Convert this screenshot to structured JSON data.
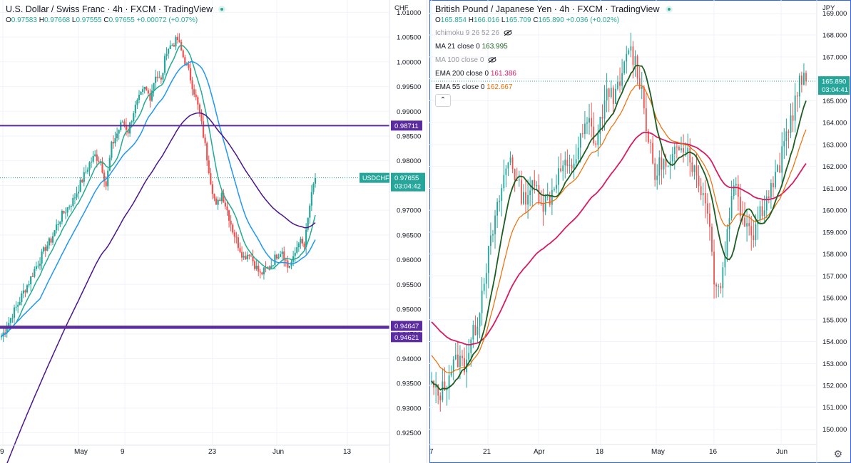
{
  "left": {
    "title": "U.S. Dollar / Swiss Franc · 4h · FXCM · TradingView",
    "ohlc": {
      "o": "0.97583",
      "h": "0.97668",
      "l": "0.97555",
      "c": "0.97655",
      "chg": "+0.00072 (+0.07%)"
    },
    "currency": "CHF",
    "symbol_label": "USDCHF",
    "price_label": "0.97655",
    "countdown": "03:04:42",
    "level_labels": [
      "0.98711",
      "0.94647",
      "0.94621"
    ],
    "colors": {
      "up": "#26a69a",
      "down": "#ef5350",
      "level": "#5b2c9f",
      "ma_teal": "#22ab94",
      "ma_blue": "#2196f3",
      "ma_purple": "#4a148c"
    }
  },
  "right": {
    "title": "British Pound / Japanese Yen · 4h · FXCM · TradingView",
    "ohlc": {
      "o": "165.854",
      "h": "166.016",
      "l": "165.709",
      "c": "165.890",
      "chg": "+0.036 (+0.02%)"
    },
    "currency": "JPY",
    "indicators": [
      {
        "label": "Ichimoku 9 26 52 26",
        "value": "",
        "hidden": true
      },
      {
        "label": "MA 21 close 0",
        "value": "163.995",
        "color": "#1b5e20",
        "hidden": false
      },
      {
        "label": "MA 100 close 0",
        "value": "",
        "hidden": true
      },
      {
        "label": "EMA 200 close 0",
        "value": "161.386",
        "color": "#d81b60",
        "hidden": false
      },
      {
        "label": "EMA 55 close 0",
        "value": "162.667",
        "color": "#ef6c00",
        "hidden": false
      }
    ],
    "price_label": "165.890",
    "countdown": "03:04:41",
    "colors": {
      "up": "#26a69a",
      "down": "#ef5350",
      "ma21": "#1b5e20",
      "ema200": "#d81b60",
      "ema55": "#ef6c00"
    }
  },
  "chart_data": [
    {
      "type": "line",
      "title": "U.S. Dollar / Swiss Franc · 4h · FXCM · TradingView",
      "x_ticks": [
        "9",
        "May",
        "9",
        "23",
        "Jun",
        "13"
      ],
      "y_ticks": [
        "1.01000",
        "1.00500",
        "1.00000",
        "0.99500",
        "0.99000",
        "0.98500",
        "0.98000",
        "0.97500",
        "0.97000",
        "0.96500",
        "0.96000",
        "0.95500",
        "0.95000",
        "0.94500",
        "0.94000",
        "0.93500",
        "0.93000",
        "0.92500"
      ],
      "ylim": [
        0.9225,
        1.0125
      ],
      "close_series": [
        0.9445,
        0.9465,
        0.949,
        0.951,
        0.9535,
        0.9555,
        0.958,
        0.96,
        0.9625,
        0.964,
        0.9668,
        0.969,
        0.9705,
        0.972,
        0.9745,
        0.977,
        0.9795,
        0.981,
        0.98,
        0.975,
        0.983,
        0.9855,
        0.988,
        0.986,
        0.99,
        0.9925,
        0.9945,
        0.993,
        0.9975,
        0.996,
        1.0025,
        1.0035,
        1.0045,
        1.001,
        0.998,
        0.994,
        0.9895,
        0.983,
        0.976,
        0.9705,
        0.9735,
        0.97,
        0.966,
        0.963,
        0.9605,
        0.9615,
        0.959,
        0.957,
        0.958,
        0.959,
        0.961,
        0.962,
        0.9585,
        0.96,
        0.964,
        0.9625,
        0.971,
        0.9765
      ],
      "horizontal_levels": [
        0.98711,
        0.94647,
        0.94621
      ],
      "last_price": 0.97655,
      "grid": true
    },
    {
      "type": "line",
      "title": "British Pound / Japanese Yen · 4h · FXCM · TradingView",
      "x_ticks": [
        "7",
        "21",
        "Apr",
        "18",
        "May",
        "16",
        "Jun"
      ],
      "y_ticks": [
        "169.000",
        "168.000",
        "167.000",
        "166.000",
        "165.000",
        "164.000",
        "163.000",
        "162.000",
        "161.000",
        "160.000",
        "159.000",
        "158.000",
        "157.000",
        "156.000",
        "155.000",
        "154.000",
        "153.000",
        "152.000",
        "151.000",
        "150.000"
      ],
      "ylim": [
        149.3,
        169.6
      ],
      "close_series": [
        152.0,
        151.5,
        152.0,
        152.8,
        153.2,
        153.0,
        154.0,
        155.0,
        157.0,
        158.5,
        160.0,
        161.5,
        162.5,
        161.2,
        160.5,
        161.0,
        161.0,
        160.3,
        160.6,
        161.5,
        162.0,
        161.8,
        162.5,
        163.5,
        164.0,
        163.0,
        164.5,
        165.5,
        165.2,
        166.0,
        167.5,
        166.8,
        165.5,
        163.2,
        161.5,
        162.3,
        161.8,
        162.5,
        163.2,
        162.8,
        161.8,
        161.0,
        160.2,
        157.0,
        156.5,
        159.0,
        161.5,
        160.0,
        159.5,
        159.0,
        160.0,
        160.5,
        161.2,
        162.0,
        163.5,
        164.5,
        165.8,
        165.89
      ],
      "series": [
        {
          "name": "MA 21 close 0",
          "last": 163.995
        },
        {
          "name": "EMA 200 close 0",
          "last": 161.386
        },
        {
          "name": "EMA 55 close 0",
          "last": 162.667
        }
      ],
      "last_price": 165.89,
      "grid": true
    }
  ]
}
